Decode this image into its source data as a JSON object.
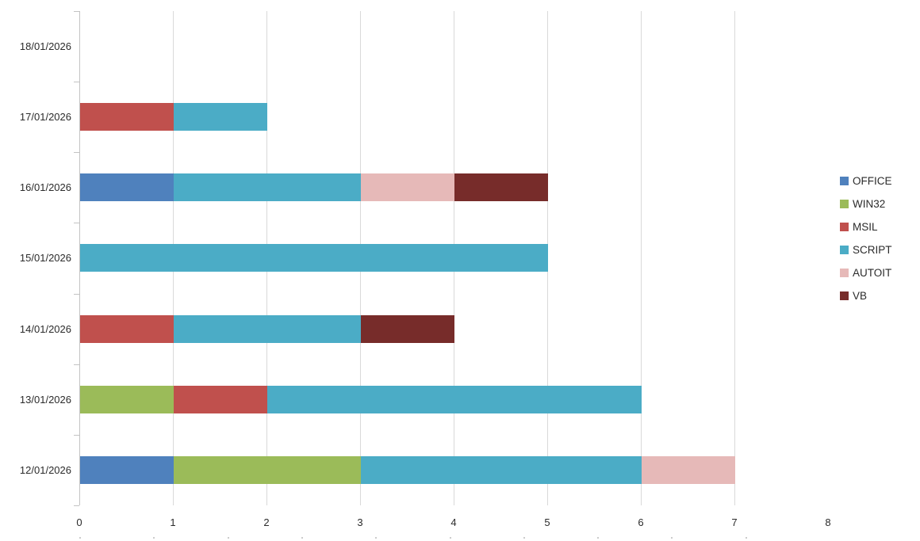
{
  "chart_data": {
    "type": "bar",
    "orientation": "horizontal",
    "stacked": true,
    "title": "",
    "xlabel": "",
    "ylabel": "",
    "grid": true,
    "legend_position": "right",
    "categories": [
      "18/01/2026",
      "17/01/2026",
      "16/01/2026",
      "15/01/2026",
      "14/01/2026",
      "13/01/2026",
      "12/01/2026"
    ],
    "series": [
      {
        "name": "OFFICE",
        "color": "#4F81BD",
        "values": [
          0,
          0,
          1,
          0,
          0,
          0,
          1
        ]
      },
      {
        "name": "WIN32",
        "color": "#9BBB59",
        "values": [
          0,
          0,
          0,
          0,
          0,
          1,
          2
        ]
      },
      {
        "name": "MSIL",
        "color": "#C0504D",
        "values": [
          0,
          1,
          0,
          0,
          1,
          1,
          0
        ]
      },
      {
        "name": "SCRIPT",
        "color": "#4BACC6",
        "values": [
          0,
          1,
          2,
          5,
          2,
          4,
          3
        ]
      },
      {
        "name": "AUTOIT",
        "color": "#E6B9B8",
        "values": [
          0,
          0,
          1,
          0,
          0,
          0,
          1
        ]
      },
      {
        "name": "VB",
        "color": "#772C2A",
        "values": [
          0,
          0,
          1,
          0,
          1,
          0,
          0
        ]
      }
    ],
    "totals_by_category": [
      0,
      2,
      5,
      5,
      4,
      6,
      7
    ],
    "x_axis": {
      "min": 0,
      "max": 8,
      "ticks": [
        0,
        1,
        2,
        3,
        4,
        5,
        6,
        7,
        8
      ]
    }
  },
  "style": {
    "background": "#FFFFFF",
    "gridline_color": "#D9D9D9",
    "axis_color": "#C3C3C3",
    "text_color": "#2B2B2B"
  }
}
